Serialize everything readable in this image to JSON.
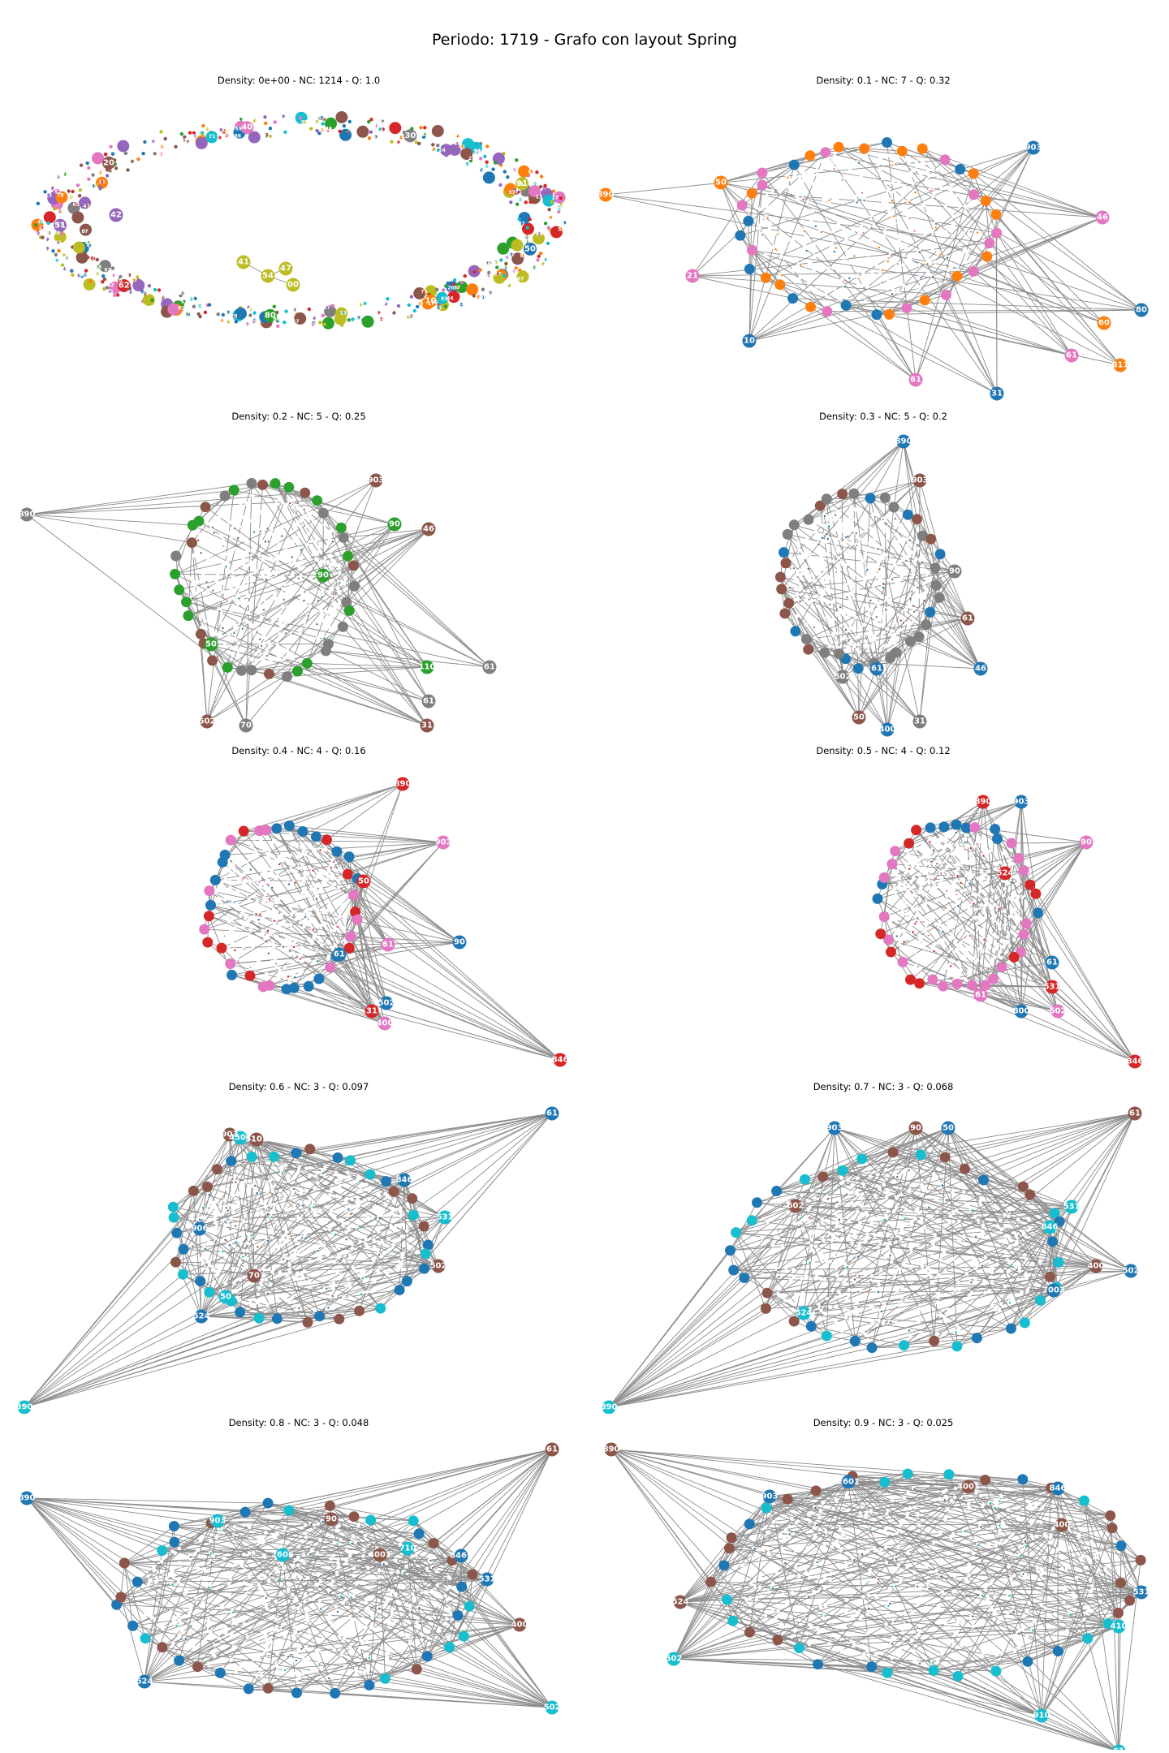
{
  "title": "Periodo: 1719 - Grafo con layout Spring",
  "palette": {
    "blue": "#1f77b4",
    "orange": "#ff7f0e",
    "green": "#2ca02c",
    "red": "#d62728",
    "purple": "#9467bd",
    "brown": "#8c564b",
    "pink": "#e377c2",
    "gray": "#7f7f7f",
    "olive": "#bcbd22",
    "cyan": "#17becf"
  },
  "panels": [
    {
      "title": "Density: 0e+00 - NC: 1214 - Q: 1.0",
      "density": "0e+00",
      "nc": 1214,
      "q": 1.0,
      "kind": "ring",
      "colors": [
        "blue",
        "orange",
        "green",
        "red",
        "purple",
        "brown",
        "pink",
        "gray",
        "olive",
        "cyan"
      ],
      "labels": [
        "42",
        "41",
        "54",
        "47",
        "00",
        "50",
        "10",
        "80",
        "62",
        "51",
        "20",
        "40",
        "30",
        "91"
      ]
    },
    {
      "title": "Density: 0.1 - NC: 7 - Q: 0.32",
      "density": "0.1",
      "nc": 7,
      "q": 0.32,
      "kind": "blob",
      "colors": [
        "blue",
        "orange",
        "pink"
      ],
      "labels": [
        "903",
        "890",
        "46",
        "80",
        "60",
        "61",
        "31",
        "611",
        "61",
        "10",
        "50",
        "21",
        "80",
        "52",
        "30",
        "70",
        "90",
        "11",
        "50"
      ]
    },
    {
      "title": "Density: 0.2 - NC: 5 - Q: 0.25",
      "density": "0.2",
      "nc": 5,
      "q": 0.25,
      "kind": "blob",
      "colors": [
        "brown",
        "gray",
        "green"
      ],
      "labels": [
        "903",
        "890",
        "90",
        "46",
        "61",
        "110",
        "31",
        "61",
        "50",
        "502",
        "70",
        "90",
        "100",
        "20"
      ]
    },
    {
      "title": "Density: 0.3 - NC: 5 - Q: 0.2",
      "density": "0.3",
      "nc": 5,
      "q": 0.2,
      "kind": "blob",
      "colors": [
        "blue",
        "brown",
        "gray"
      ],
      "labels": [
        "890",
        "903",
        "90",
        "46",
        "61",
        "31",
        "400",
        "50",
        "502",
        "61",
        "70",
        "50"
      ]
    },
    {
      "title": "Density: 0.4 - NC: 4 - Q: 0.16",
      "density": "0.4",
      "nc": 4,
      "q": 0.16,
      "kind": "blob",
      "colors": [
        "red",
        "pink",
        "blue"
      ],
      "labels": [
        "890",
        "903",
        "90",
        "846",
        "61",
        "502",
        "31",
        "400",
        "61",
        "50",
        "524",
        "510"
      ]
    },
    {
      "title": "Density: 0.5 - NC: 4 - Q: 0.12",
      "density": "0.5",
      "nc": 4,
      "q": 0.12,
      "kind": "blob",
      "colors": [
        "red",
        "blue",
        "pink"
      ],
      "labels": [
        "890",
        "903",
        "90",
        "846",
        "61",
        "502",
        "531",
        "800",
        "61",
        "524",
        "60"
      ]
    },
    {
      "title": "Density: 0.6 - NC: 3 - Q: 0.097",
      "density": "0.6",
      "nc": 3,
      "q": 0.097,
      "kind": "blob",
      "colors": [
        "blue",
        "cyan",
        "brown"
      ],
      "labels": [
        "61",
        "890",
        "502",
        "846",
        "531",
        "903",
        "524",
        "50",
        "70",
        "906",
        "4501",
        "5101"
      ]
    },
    {
      "title": "Density: 0.7 - NC: 3 - Q: 0.068",
      "density": "0.7",
      "nc": 3,
      "q": 0.068,
      "kind": "blob",
      "colors": [
        "brown",
        "cyan",
        "blue"
      ],
      "labels": [
        "61",
        "890",
        "502",
        "400",
        "531",
        "903",
        "90",
        "524",
        "7003",
        "602",
        "846",
        "50"
      ]
    },
    {
      "title": "Density: 0.8 - NC: 3 - Q: 0.048",
      "density": "0.8",
      "nc": 3,
      "q": 0.048,
      "kind": "blob",
      "colors": [
        "brown",
        "blue",
        "cyan"
      ],
      "labels": [
        "61",
        "890",
        "502",
        "400",
        "531",
        "903",
        "90",
        "524",
        "2606",
        "4001",
        "8469",
        "710"
      ]
    },
    {
      "title": "Density: 0.9 - NC: 3 - Q: 0.025",
      "density": "0.9",
      "nc": 3,
      "q": 0.025,
      "kind": "blob",
      "colors": [
        "brown",
        "cyan",
        "blue"
      ],
      "labels": [
        "890",
        "61",
        "531",
        "400",
        "410",
        "903",
        "524",
        "502",
        "2601",
        "4001",
        "910",
        "846"
      ]
    }
  ]
}
